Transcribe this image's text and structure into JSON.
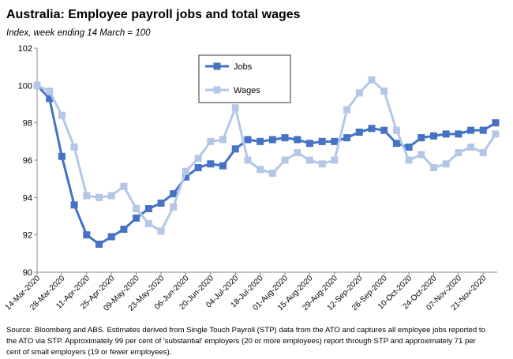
{
  "chart_data": {
    "type": "line",
    "title": "Australia: Employee payroll jobs and total wages",
    "subtitle": "Index, week ending 14 March = 100",
    "source": [
      "Source: Bloomberg and ABS. Estimates derived from Single Touch Payroll (STP) data from the ATO and captures all employee jobs reported to",
      "the ATO via STP.  Approximately 99 per cent of 'substantial' employers (20 or more employees) report through STP and approximately 71 per",
      "cent of small employers (19 or fewer employees)."
    ],
    "categories": [
      "14-Mar-2020",
      null,
      "28-Mar-2020",
      null,
      "11-Apr-2020",
      null,
      "25-Apr-2020",
      null,
      "09-May-2020",
      null,
      "23-May-2020",
      null,
      "06-Jun-2020",
      null,
      "20-Jun-2020",
      null,
      "04-Jul-2020",
      null,
      "18-Jul-2020",
      null,
      "01-Aug-2020",
      null,
      "15-Aug-2020",
      null,
      "29-Aug-2020",
      null,
      "12-Sep-2020",
      null,
      "26-Sep-2020",
      null,
      "10-Oct-2020",
      null,
      "24-Oct-2020",
      null,
      "07-Nov-2020",
      null,
      "21-Nov-2020",
      null
    ],
    "series": [
      {
        "name": "Jobs",
        "color": "#4472c4",
        "values": [
          100,
          99.3,
          96.2,
          93.6,
          92.0,
          91.5,
          91.9,
          92.3,
          92.9,
          93.4,
          93.7,
          94.2,
          95.1,
          95.6,
          95.8,
          95.7,
          96.6,
          97.1,
          97.0,
          97.1,
          97.2,
          97.1,
          96.9,
          97.0,
          97.0,
          97.2,
          97.5,
          97.7,
          97.6,
          96.9,
          96.7,
          97.2,
          97.3,
          97.4,
          97.4,
          97.6,
          97.6,
          98.0
        ]
      },
      {
        "name": "Wages",
        "color": "#b4c7e7",
        "values": [
          100,
          99.7,
          98.4,
          96.7,
          94.1,
          94.0,
          94.1,
          94.6,
          93.4,
          92.6,
          92.2,
          93.5,
          95.4,
          96.1,
          97.0,
          97.1,
          98.8,
          96.0,
          95.5,
          95.3,
          96.0,
          96.4,
          96.0,
          95.8,
          96.0,
          98.7,
          99.6,
          100.3,
          99.7,
          97.6,
          96.0,
          96.3,
          95.6,
          95.8,
          96.4,
          96.7,
          96.4,
          97.4
        ]
      }
    ],
    "ylim": [
      90,
      102
    ],
    "yticks": [
      90,
      92,
      94,
      96,
      98,
      100,
      102
    ],
    "grid": false
  }
}
